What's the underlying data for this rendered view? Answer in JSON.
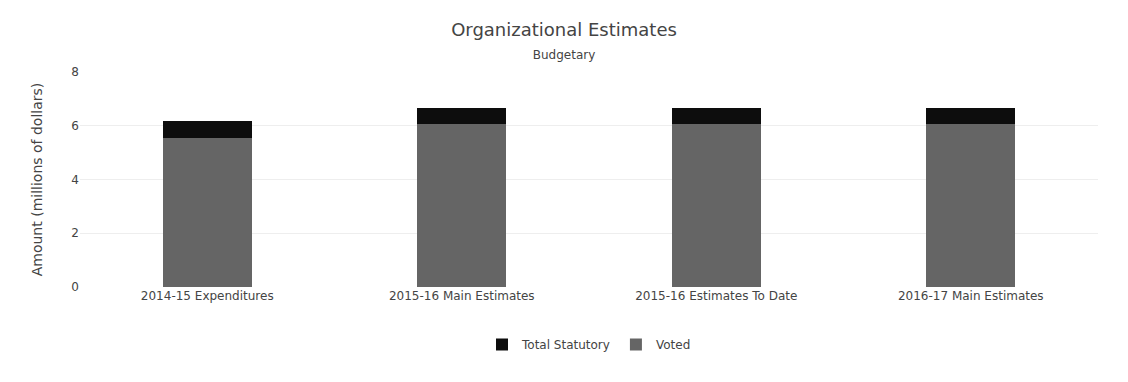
{
  "chart_data": {
    "type": "bar",
    "title": "Organizational Estimates",
    "subtitle": "Budgetary",
    "ylabel": "Amount (millions of dollars)",
    "categories": [
      "2014-15 Expenditures",
      "2015-16 Main Estimates",
      "2015-16 Estimates To Date",
      "2016-17 Main Estimates"
    ],
    "series": [
      {
        "name": "Voted",
        "color": "#656565",
        "values": [
          5.55,
          6.07,
          6.06,
          6.07
        ]
      },
      {
        "name": "Total Statutory",
        "color": "#0d0d0d",
        "values": [
          0.63,
          0.6,
          0.59,
          0.6
        ]
      }
    ],
    "stacked": true,
    "ylim": [
      0,
      8
    ],
    "yticks": [
      0,
      2,
      4,
      6,
      8
    ],
    "grid": true,
    "legend": "bottom"
  }
}
